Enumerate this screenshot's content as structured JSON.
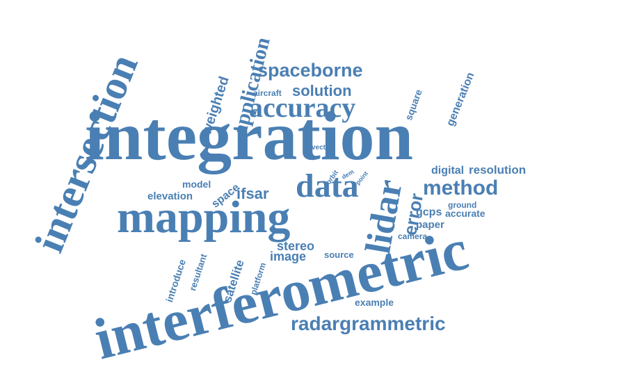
{
  "color": "#4a7fb3",
  "words": {
    "integration": "integration",
    "interferometric": "interferometric",
    "mapping": "mapping",
    "intersection": "intersection",
    "data": "data",
    "lidar": "lidar",
    "accuracy": "accuracy",
    "application": "application",
    "spaceborne": "spaceborne",
    "method": "method",
    "radargrammetric": "radargrammetric",
    "solution": "solution",
    "error": "error",
    "weighted": "weighted",
    "generation": "generation",
    "square": "square",
    "aircraft": "aircraft",
    "vector": "vector",
    "orbit": "orbit",
    "dem": "dem",
    "point": "point",
    "digital": "digital",
    "resolution": "resolution",
    "model": "model",
    "space": "space",
    "elevation": "elevation",
    "ifsar": "ifsar",
    "ground": "ground",
    "gcps": "gcps",
    "accurate": "accurate",
    "paper": "paper",
    "camera": "camera",
    "stereo": "stereo",
    "image": "image",
    "source": "source",
    "introduce": "introduce",
    "resultant": "resultant",
    "satellite": "satellite",
    "platform": "platform",
    "example": "example"
  }
}
